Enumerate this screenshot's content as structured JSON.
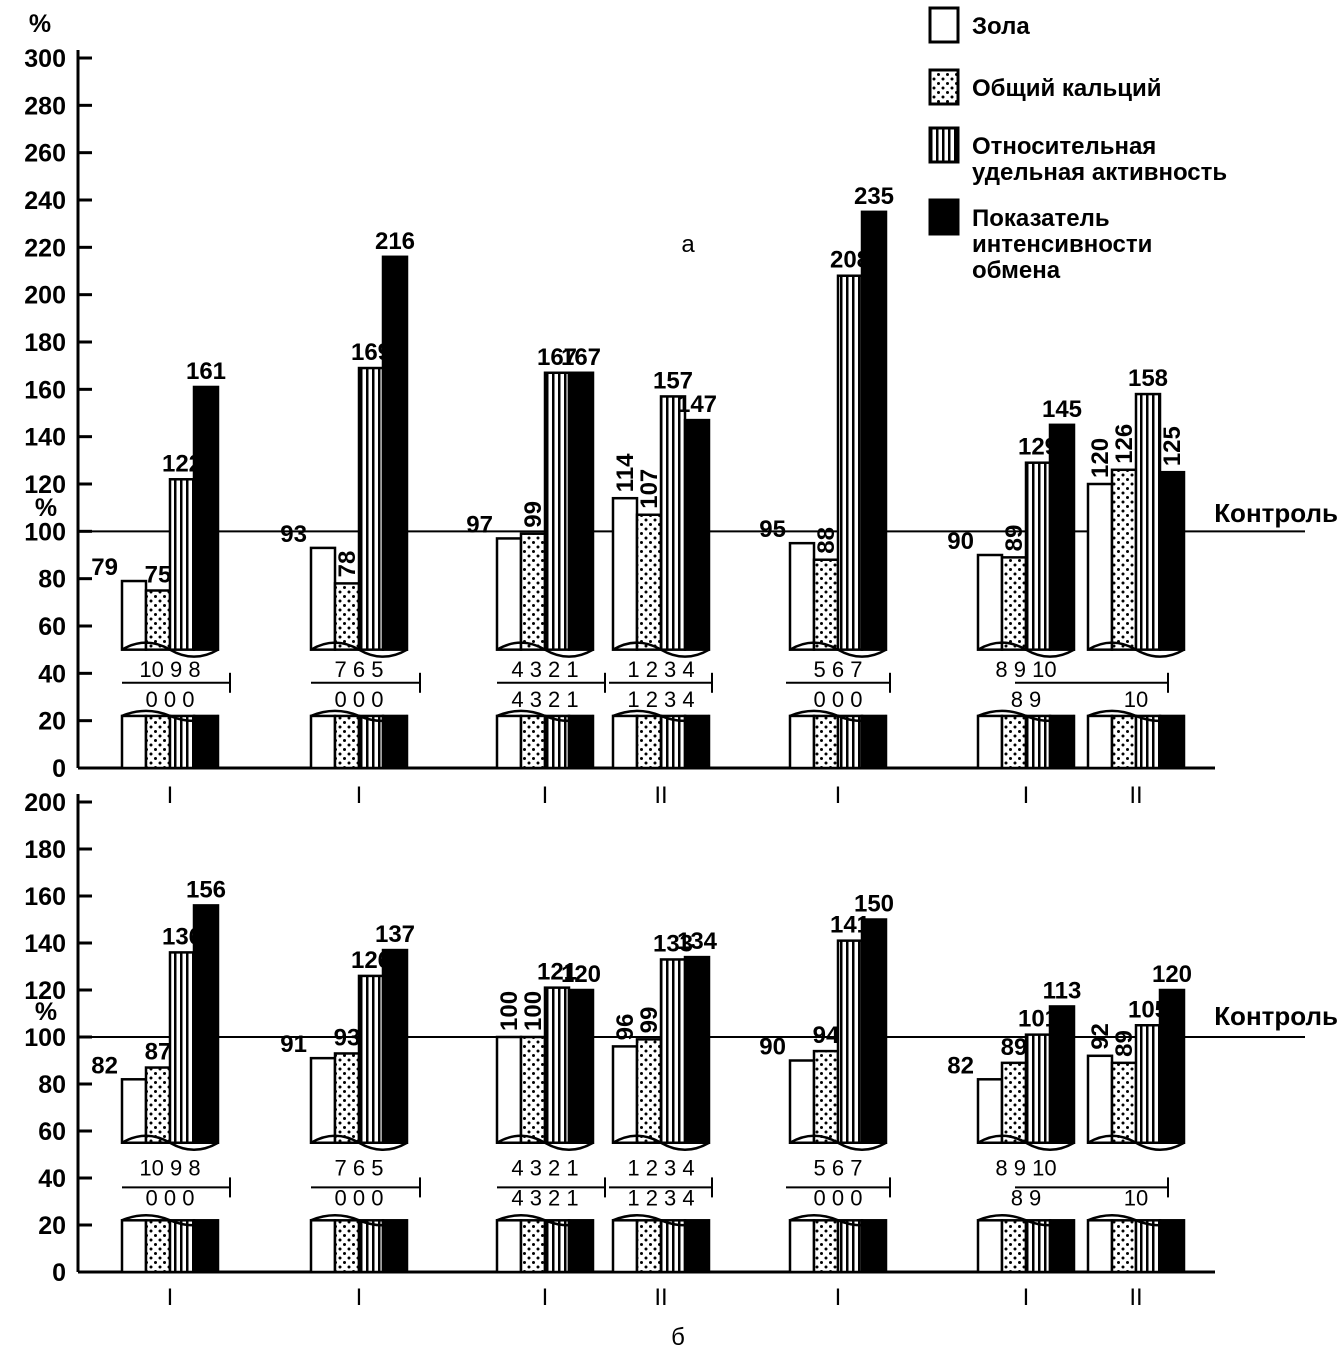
{
  "chart_data": [
    {
      "type": "bar",
      "panel_label": "а",
      "yunit": "%",
      "yunit_mid": "%",
      "ylim": [
        0,
        300
      ],
      "yticks": [
        "0",
        "20",
        "40",
        "60",
        "80",
        "100",
        "120",
        "140",
        "160",
        "180",
        "200",
        "220",
        "240",
        "260",
        "280",
        "300"
      ],
      "control_value": 100,
      "control_label": "Контроль",
      "series": [
        {
          "name": "Зола",
          "pattern": "white"
        },
        {
          "name": "Общий кальций",
          "pattern": "dots"
        },
        {
          "name": "Относительная удельная активность",
          "pattern": "stripes"
        },
        {
          "name": "Показатель интенсивности обмена",
          "pattern": "black"
        }
      ],
      "groups": [
        {
          "label": "I",
          "values": [
            79,
            75,
            122,
            161
          ],
          "labels": [
            "79",
            "75",
            "122",
            "161"
          ],
          "top_label": "10  9  8",
          "bottom_label": "0  0  0"
        },
        {
          "label": "I",
          "values": [
            93,
            78,
            169,
            216
          ],
          "labels": [
            "93",
            "78",
            "169",
            "216"
          ],
          "top_label": "7  6  5",
          "bottom_label": "0  0  0"
        },
        {
          "label": "I",
          "values": [
            97,
            99,
            167,
            167
          ],
          "labels": [
            "97",
            "99",
            "167",
            "167"
          ],
          "top_label": "4 3 2  1",
          "bottom_label": "4 3 2 1"
        },
        {
          "label": "II",
          "values": [
            114,
            107,
            157,
            147
          ],
          "labels": [
            "114",
            "107",
            "157",
            "147"
          ],
          "top_label": "1 2 3 4",
          "bottom_label": "1 2 3 4"
        },
        {
          "label": "I",
          "values": [
            95,
            88,
            208,
            235
          ],
          "labels": [
            "95",
            "88",
            "208",
            "235"
          ],
          "top_label": "5 6 7",
          "bottom_label": "0 0 0"
        },
        {
          "label": "I",
          "values": [
            90,
            89,
            129,
            145
          ],
          "labels": [
            "90",
            "89",
            "129",
            "145"
          ],
          "top_label": "8  9  10",
          "bottom_label": "8  9"
        },
        {
          "label": "II",
          "values": [
            120,
            126,
            158,
            125
          ],
          "labels": [
            "120",
            "126",
            "158",
            "125"
          ],
          "top_label": "",
          "bottom_label": "10"
        }
      ]
    },
    {
      "type": "bar",
      "panel_label": "б",
      "yunit": "%",
      "ylim": [
        0,
        200
      ],
      "yticks": [
        "0",
        "20",
        "40",
        "60",
        "80",
        "100",
        "120",
        "140",
        "160",
        "180",
        "200"
      ],
      "control_value": 100,
      "control_label": "Контроль",
      "groups": [
        {
          "label": "I",
          "values": [
            82,
            87,
            136,
            156
          ],
          "labels": [
            "82",
            "87",
            "136",
            "156"
          ],
          "top_label": "10  9  8",
          "bottom_label": "0  0  0"
        },
        {
          "label": "I",
          "values": [
            91,
            93,
            126,
            137
          ],
          "labels": [
            "91",
            "93",
            "126",
            "137"
          ],
          "top_label": "7  6  5",
          "bottom_label": "0  0  0"
        },
        {
          "label": "I",
          "values": [
            100,
            100,
            121,
            120
          ],
          "labels": [
            "100",
            "100",
            "121",
            "120"
          ],
          "top_label": "4  3 2 1",
          "bottom_label": "4 3 2 1"
        },
        {
          "label": "II",
          "values": [
            96,
            99,
            133,
            134
          ],
          "labels": [
            "96",
            "99",
            "133",
            "134"
          ],
          "top_label": "1 2 3 4",
          "bottom_label": "1 2 3 4"
        },
        {
          "label": "I",
          "values": [
            90,
            94,
            141,
            150
          ],
          "labels": [
            "90",
            "94",
            "141",
            "150"
          ],
          "top_label": "5 6 7",
          "bottom_label": "0 0 0"
        },
        {
          "label": "I",
          "values": [
            82,
            89,
            101,
            113
          ],
          "labels": [
            "82",
            "89",
            "101",
            "113"
          ],
          "top_label": "8  9  10",
          "bottom_label": "8  9"
        },
        {
          "label": "II",
          "values": [
            92,
            89,
            105,
            120
          ],
          "labels": [
            "92",
            "89",
            "105",
            "120"
          ],
          "top_label": "",
          "bottom_label": "10"
        }
      ]
    }
  ],
  "legend": {
    "placement": "top-right",
    "items": [
      {
        "lines": [
          "Зола"
        ],
        "pattern": "white"
      },
      {
        "lines": [
          "Общий кальций"
        ],
        "pattern": "dots"
      },
      {
        "lines": [
          "Относительная",
          "удельная активность"
        ],
        "pattern": "stripes"
      },
      {
        "lines": [
          "Показатель",
          "интенсивности",
          "обмена"
        ],
        "pattern": "black"
      }
    ]
  },
  "colors": {
    "ink": "#000000",
    "paper": "#ffffff"
  }
}
